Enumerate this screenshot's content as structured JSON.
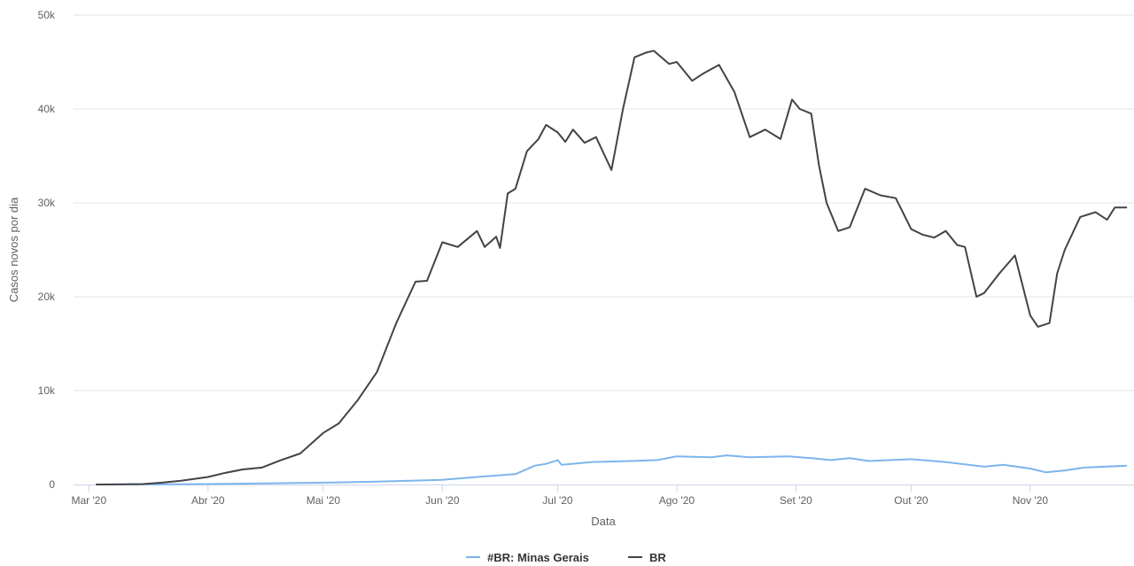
{
  "chart_data": {
    "type": "line",
    "title": "",
    "xlabel": "Data",
    "ylabel": "Casos novos por dia",
    "xlim": [
      "2020-02-26",
      "2020-11-28"
    ],
    "ylim": [
      0,
      50000
    ],
    "grid": true,
    "legend_position": "bottom-center",
    "y_ticks": [
      {
        "value": 0,
        "label": "0"
      },
      {
        "value": 10000,
        "label": "10k"
      },
      {
        "value": 20000,
        "label": "20k"
      },
      {
        "value": 30000,
        "label": "30k"
      },
      {
        "value": 40000,
        "label": "40k"
      },
      {
        "value": 50000,
        "label": "50k"
      }
    ],
    "x_ticks": [
      {
        "date": "2020-03-01",
        "label": "Mar '20"
      },
      {
        "date": "2020-04-01",
        "label": "Abr '20"
      },
      {
        "date": "2020-05-01",
        "label": "Mai '20"
      },
      {
        "date": "2020-06-01",
        "label": "Jun '20"
      },
      {
        "date": "2020-07-01",
        "label": "Jul '20"
      },
      {
        "date": "2020-08-01",
        "label": "Ago '20"
      },
      {
        "date": "2020-09-01",
        "label": "Set '20"
      },
      {
        "date": "2020-10-01",
        "label": "Out '20"
      },
      {
        "date": "2020-11-01",
        "label": "Nov '20"
      }
    ],
    "series": [
      {
        "name": "#BR: Minas Gerais",
        "color": "#7cb5ec",
        "x": [
          "2020-03-03",
          "2020-03-15",
          "2020-04-01",
          "2020-04-15",
          "2020-05-01",
          "2020-05-15",
          "2020-06-01",
          "2020-06-10",
          "2020-06-20",
          "2020-06-25",
          "2020-06-28",
          "2020-07-01",
          "2020-07-02",
          "2020-07-10",
          "2020-07-20",
          "2020-07-27",
          "2020-08-01",
          "2020-08-10",
          "2020-08-14",
          "2020-08-20",
          "2020-08-30",
          "2020-09-05",
          "2020-09-10",
          "2020-09-15",
          "2020-09-20",
          "2020-10-01",
          "2020-10-10",
          "2020-10-20",
          "2020-10-25",
          "2020-11-01",
          "2020-11-05",
          "2020-11-10",
          "2020-11-15",
          "2020-11-26"
        ],
        "values": [
          0,
          10,
          50,
          120,
          200,
          300,
          500,
          800,
          1100,
          2000,
          2200,
          2600,
          2100,
          2400,
          2500,
          2600,
          3000,
          2900,
          3100,
          2900,
          3000,
          2800,
          2600,
          2800,
          2500,
          2700,
          2400,
          1900,
          2100,
          1700,
          1300,
          1500,
          1800,
          2000
        ]
      },
      {
        "name": "BR",
        "color": "#434348",
        "x": [
          "2020-03-03",
          "2020-03-15",
          "2020-03-20",
          "2020-03-25",
          "2020-04-01",
          "2020-04-05",
          "2020-04-10",
          "2020-04-15",
          "2020-04-20",
          "2020-04-25",
          "2020-05-01",
          "2020-05-05",
          "2020-05-10",
          "2020-05-15",
          "2020-05-20",
          "2020-05-25",
          "2020-05-28",
          "2020-06-01",
          "2020-06-05",
          "2020-06-10",
          "2020-06-12",
          "2020-06-15",
          "2020-06-16",
          "2020-06-18",
          "2020-06-20",
          "2020-06-23",
          "2020-06-26",
          "2020-06-28",
          "2020-07-01",
          "2020-07-03",
          "2020-07-05",
          "2020-07-08",
          "2020-07-11",
          "2020-07-15",
          "2020-07-18",
          "2020-07-21",
          "2020-07-24",
          "2020-07-26",
          "2020-07-30",
          "2020-08-01",
          "2020-08-03",
          "2020-08-05",
          "2020-08-08",
          "2020-08-12",
          "2020-08-16",
          "2020-08-20",
          "2020-08-24",
          "2020-08-28",
          "2020-08-31",
          "2020-09-02",
          "2020-09-05",
          "2020-09-07",
          "2020-09-09",
          "2020-09-12",
          "2020-09-15",
          "2020-09-19",
          "2020-09-23",
          "2020-09-27",
          "2020-10-01",
          "2020-10-04",
          "2020-10-07",
          "2020-10-10",
          "2020-10-13",
          "2020-10-15",
          "2020-10-18",
          "2020-10-20",
          "2020-10-24",
          "2020-10-28",
          "2020-11-01",
          "2020-11-03",
          "2020-11-06",
          "2020-11-08",
          "2020-11-10",
          "2020-11-14",
          "2020-11-18",
          "2020-11-21",
          "2020-11-23",
          "2020-11-26"
        ],
        "values": [
          0,
          50,
          200,
          400,
          800,
          1200,
          1600,
          1800,
          2600,
          3300,
          5500,
          6500,
          9000,
          12000,
          17200,
          21600,
          21700,
          25800,
          25300,
          27000,
          25300,
          26400,
          25200,
          31000,
          31500,
          35500,
          36800,
          38300,
          37500,
          36500,
          37800,
          36400,
          37000,
          33500,
          40000,
          45500,
          46000,
          46200,
          44800,
          45000,
          44000,
          43000,
          43800,
          44700,
          41800,
          37000,
          37800,
          36800,
          41000,
          40000,
          39500,
          34000,
          30000,
          27000,
          27400,
          31500,
          30800,
          30500,
          27200,
          26600,
          26300,
          27000,
          25500,
          25300,
          20000,
          20400,
          22500,
          24400,
          18000,
          16800,
          17200,
          22500,
          25000,
          28500,
          29000,
          28200,
          29500,
          29500
        ]
      }
    ]
  }
}
